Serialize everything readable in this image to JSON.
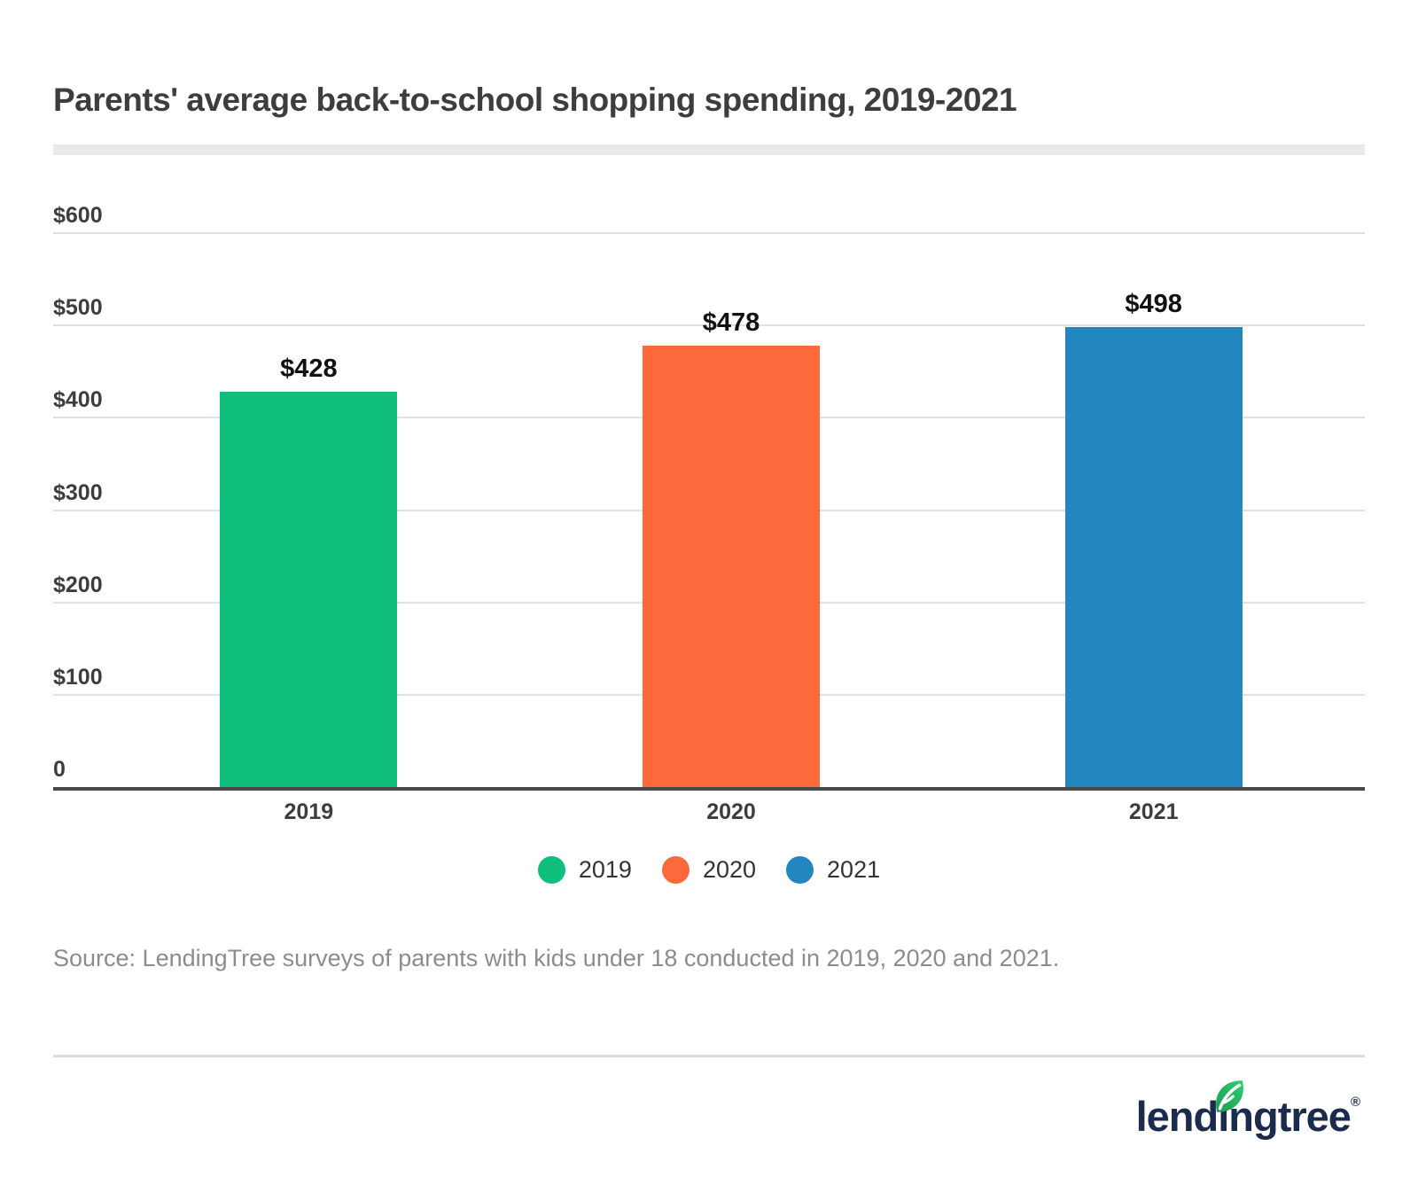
{
  "title": "Parents' average back-to-school shopping spending, 2019-2021",
  "chart_data": {
    "type": "bar",
    "title": "Parents' average back-to-school shopping spending, 2019-2021",
    "categories": [
      "2019",
      "2020",
      "2021"
    ],
    "values": [
      428,
      478,
      498
    ],
    "value_labels": [
      "$428",
      "$478",
      "$498"
    ],
    "bar_colors": [
      "#0fbf7b",
      "#fc6a3c",
      "#2287bf"
    ],
    "xlabel": "",
    "ylabel": "",
    "ylim": [
      0,
      600
    ],
    "yticks": [
      600,
      500,
      400,
      300,
      200,
      100,
      0
    ],
    "ytick_labels": [
      "$600",
      "$500",
      "$400",
      "$300",
      "$200",
      "$100",
      "0"
    ],
    "grid": true,
    "legend_position": "bottom",
    "legend": [
      {
        "label": "2019",
        "color": "#0fbf7b"
      },
      {
        "label": "2020",
        "color": "#fc6a3c"
      },
      {
        "label": "2021",
        "color": "#2287bf"
      }
    ]
  },
  "source_note": "Source: LendingTree surveys of parents with kids under 18 conducted in 2019, 2020 and 2021.",
  "logo": {
    "brand": "lendingtree",
    "registered": "®"
  },
  "colors": {
    "title_text": "#3d3d3d",
    "axis_line": "#474747",
    "gridline": "#e1e1e1",
    "value_label": "#111111",
    "source_text": "#8c8c8c",
    "logo_navy": "#1b2b4d",
    "leaf_green_dark": "#1c9b52",
    "leaf_green_light": "#30ce6c",
    "title_underline": "#e9e9e9"
  }
}
